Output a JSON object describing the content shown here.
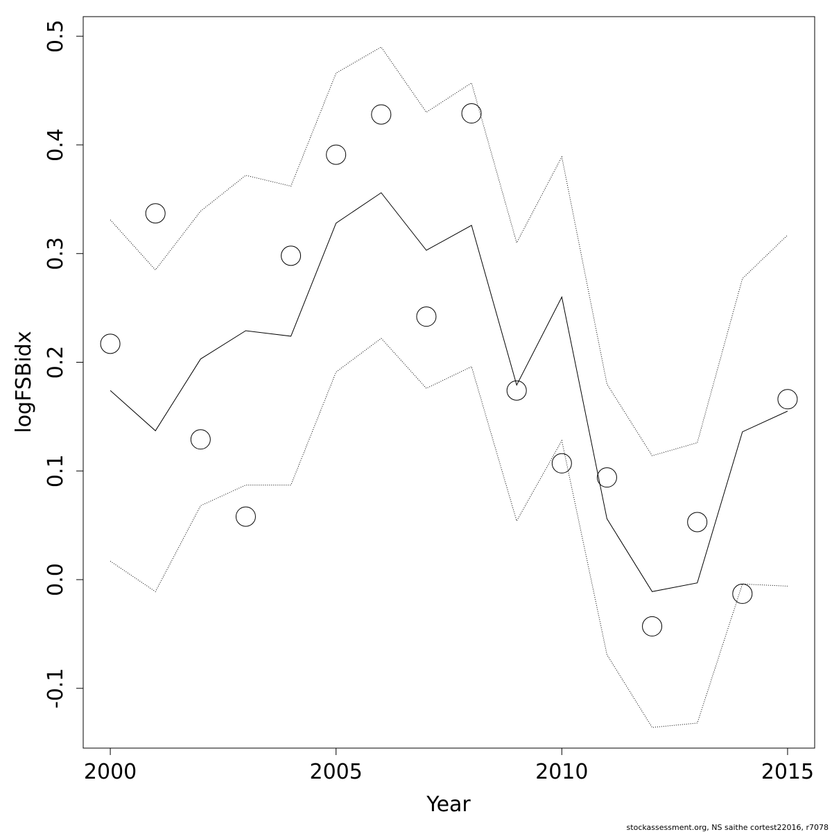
{
  "chart_data": {
    "type": "line",
    "xlabel": "Year",
    "ylabel": "logFSBidx",
    "xlim": [
      1999.4,
      2015.6
    ],
    "ylim": [
      -0.155,
      0.518
    ],
    "x_ticks": [
      2000,
      2005,
      2010,
      2015
    ],
    "x_tick_labels": [
      "2000",
      "2005",
      "2010",
      "2015"
    ],
    "y_ticks": [
      -0.1,
      0.0,
      0.1,
      0.2,
      0.3,
      0.4,
      0.5
    ],
    "y_tick_labels": [
      "-0.1",
      "0.0",
      "0.1",
      "0.2",
      "0.3",
      "0.4",
      "0.5"
    ],
    "grid": false,
    "x": [
      2000,
      2001,
      2002,
      2003,
      2004,
      2005,
      2006,
      2007,
      2008,
      2009,
      2010,
      2011,
      2012,
      2013,
      2014,
      2015
    ],
    "series": [
      {
        "style": "points",
        "values": [
          0.217,
          0.337,
          0.129,
          0.058,
          0.298,
          0.391,
          0.428,
          0.242,
          0.429,
          0.174,
          0.107,
          0.094,
          -0.043,
          0.053,
          -0.013,
          0.166
        ]
      },
      {
        "style": "solid",
        "values": [
          0.174,
          0.137,
          0.203,
          0.229,
          0.224,
          0.328,
          0.356,
          0.303,
          0.326,
          0.179,
          0.26,
          0.056,
          -0.011,
          -0.003,
          0.136,
          0.155
        ]
      },
      {
        "style": "dotted",
        "values": [
          0.331,
          0.285,
          0.339,
          0.372,
          0.362,
          0.466,
          0.49,
          0.43,
          0.457,
          0.31,
          0.389,
          0.18,
          0.114,
          0.126,
          0.277,
          0.317
        ]
      },
      {
        "style": "dotted",
        "values": [
          0.017,
          -0.011,
          0.068,
          0.087,
          0.087,
          0.191,
          0.222,
          0.176,
          0.196,
          0.054,
          0.128,
          -0.069,
          -0.136,
          -0.132,
          -0.004,
          -0.006
        ]
      }
    ]
  },
  "footer": {
    "credit": "stockassessment.org, NS saithe cortest22016, r7078"
  }
}
